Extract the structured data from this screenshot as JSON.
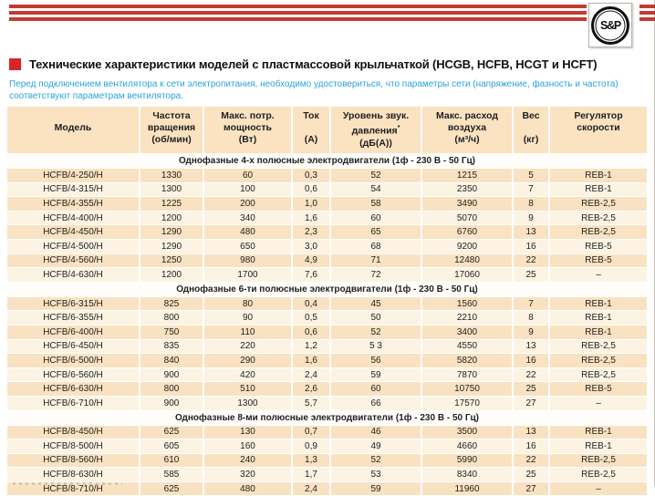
{
  "logo": {
    "text": "S&P"
  },
  "header": {
    "title": "Технические характеристики моделей с пластмассовой крыльчаткой (HCGB, HCFB, HCGT и HCFT)"
  },
  "note": "Перед подключением вентилятора к сети электропитания, необходимо удостовериться, что параметры сети (напряжение, фазность и частота) соответствуют параметрам вентилятора.",
  "colors": {
    "stripe_red": "#c23a31",
    "title_square_red": "#d8232a",
    "note_blue": "#2ba3dc",
    "header_peach": "#fbe2c1",
    "row_dark": "#f9e2c1",
    "row_light": "#fdf3e3"
  },
  "table": {
    "columns": [
      {
        "id": "model",
        "lines": [
          "",
          "Модель",
          ""
        ]
      },
      {
        "id": "speed",
        "lines": [
          "Частота",
          "вращения",
          "(об/мин)"
        ]
      },
      {
        "id": "power",
        "lines": [
          "Макс. потр.",
          "мощность",
          "(Вт)"
        ]
      },
      {
        "id": "current",
        "lines": [
          "Ток",
          "",
          "(А)"
        ]
      },
      {
        "id": "noise",
        "lines": [
          "Уровень звук.",
          "давления*",
          "(дБ(А))"
        ]
      },
      {
        "id": "airflow",
        "lines": [
          "Макс. расход",
          "воздуха",
          "(м³/ч)"
        ]
      },
      {
        "id": "weight",
        "lines": [
          "Вес",
          "",
          "(кг)"
        ]
      },
      {
        "id": "regulator",
        "lines": [
          "Регулятор",
          "скорости",
          ""
        ]
      }
    ],
    "sections": [
      {
        "title": "Однофазные 4-х полюсные электродвигатели (1ф - 230 В - 50 Гц)",
        "rows": [
          [
            "HCFB/4-250/H",
            "1330",
            "60",
            "0,3",
            "52",
            "1215",
            "5",
            "REB-1"
          ],
          [
            "HCFB/4-315/H",
            "1300",
            "100",
            "0,6",
            "54",
            "2350",
            "7",
            "REB-1"
          ],
          [
            "HCFB/4-355/H",
            "1225",
            "200",
            "1,0",
            "58",
            "3490",
            "8",
            "REB-2,5"
          ],
          [
            "HCFB/4-400/H",
            "1200",
            "340",
            "1,6",
            "60",
            "5070",
            "9",
            "REB-2,5"
          ],
          [
            "HCFB/4-450/H",
            "1290",
            "480",
            "2,3",
            "65",
            "6760",
            "13",
            "REB-2,5"
          ],
          [
            "HCFB/4-500/H",
            "1290",
            "650",
            "3,0",
            "68",
            "9200",
            "16",
            "REB-5"
          ],
          [
            "HCFB/4-560/H",
            "1250",
            "980",
            "4,9",
            "71",
            "12480",
            "22",
            "REB-5"
          ],
          [
            "HCFB/4-630/H",
            "1200",
            "1700",
            "7,6",
            "72",
            "17060",
            "25",
            "–"
          ]
        ]
      },
      {
        "title": "Однофазные 6-ти полюсные электродвигатели (1ф - 230 В - 50 Гц)",
        "rows": [
          [
            "HCFB/6-315/H",
            "825",
            "80",
            "0,4",
            "45",
            "1560",
            "7",
            "REB-1"
          ],
          [
            "HCFB/6-355/H",
            "800",
            "90",
            "0,5",
            "50",
            "2210",
            "8",
            "REB-1"
          ],
          [
            "HCFB/6-400/H",
            "750",
            "110",
            "0,6",
            "52",
            "3400",
            "9",
            "REB-1"
          ],
          [
            "HCFB/6-450/H",
            "835",
            "220",
            "1,2",
            "5 3",
            "4550",
            "13",
            "REB-2,5"
          ],
          [
            "HCFB/6-500/H",
            "840",
            "290",
            "1,6",
            "56",
            "5820",
            "16",
            "REB-2,5"
          ],
          [
            "HCFB/6-560/H",
            "900",
            "420",
            "2,4",
            "59",
            "7870",
            "22",
            "REB-2,5"
          ],
          [
            "HCFB/6-630/H",
            "800",
            "510",
            "2,6",
            "60",
            "10750",
            "25",
            "REB-5"
          ],
          [
            "HCFB/6-710/H",
            "900",
            "1300",
            "5,7",
            "66",
            "17570",
            "27",
            "–"
          ]
        ]
      },
      {
        "title": "Однофазные 8-ми полюсные электродвигатели (1ф - 230 В - 50 Гц)",
        "rows": [
          [
            "HCFB/8-450/H",
            "625",
            "130",
            "0,7",
            "46",
            "3500",
            "13",
            "REB-1"
          ],
          [
            "HCFB/8-500/H",
            "605",
            "160",
            "0,9",
            "49",
            "4660",
            "16",
            "REB-1"
          ],
          [
            "HCFB/8-560/H",
            "610",
            "240",
            "1,3",
            "52",
            "5990",
            "22",
            "REB-2,5"
          ],
          [
            "HCFB/8-630/H",
            "585",
            "320",
            "1,7",
            "53",
            "8340",
            "25",
            "REB-2,5"
          ],
          [
            "HCFB/8-710/H",
            "625",
            "480",
            "2,4",
            "59",
            "11960",
            "27",
            "–"
          ]
        ]
      }
    ]
  }
}
